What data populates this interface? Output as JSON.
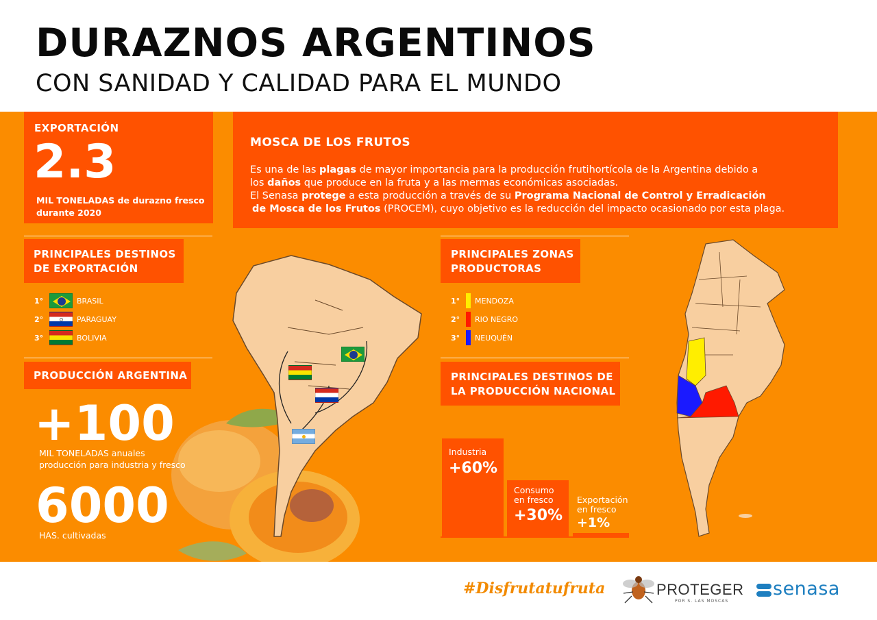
{
  "header": {
    "title": "DURAZNOS ARGENTINOS",
    "subtitle": "CON SANIDAD Y CALIDAD PARA EL MUNDO"
  },
  "export": {
    "heading": "EXPORTACIÓN",
    "value": "2.3",
    "unit_line1": "MIL TONELADAS de durazno fresco",
    "unit_line2": "durante 2020"
  },
  "mosca": {
    "heading": "MOSCA DE LOS FRUTOS",
    "p1a": "Es una de las ",
    "p1b": "plagas",
    "p1c": " de mayor importancia para la producción frutihortícola de la Argentina debido a",
    "p2a": "los ",
    "p2b": "daños",
    "p2c": " que produce en la fruta y a las mermas económicas asociadas.",
    "p3a": "El Senasa ",
    "p3b": "protege",
    "p3c": " a esta producción a través de su ",
    "p3d": "Programa Nacional de Control y Erradicación",
    "p4a": "de Mosca de los Frutos",
    "p4b": " (PROCEM), cuyo objetivo es la reducción del impacto ocasionado por esta plaga."
  },
  "destinos_export": {
    "heading_line1": "PRINCIPALES DESTINOS",
    "heading_line2": "DE EXPORTACIÓN",
    "items": [
      {
        "rank": "1°",
        "country": "BRASIL"
      },
      {
        "rank": "2°",
        "country": "PARAGUAY"
      },
      {
        "rank": "3°",
        "country": "BOLIVIA"
      }
    ]
  },
  "produccion": {
    "heading": "PRODUCCIÓN ARGENTINA",
    "value1": "+100",
    "value1_line1": "MIL TONELADAS anuales",
    "value1_line2": "producción para industria y fresco",
    "value2": "6000",
    "value2_line1": "HAS. cultivadas"
  },
  "zonas": {
    "heading_line1": "PRINCIPALES ZONAS",
    "heading_line2": "PRODUCTORAS",
    "items": [
      {
        "rank": "1°",
        "name": "MENDOZA",
        "color": "#ffee00"
      },
      {
        "rank": "2°",
        "name": "RIO NEGRO",
        "color": "#ff1a00"
      },
      {
        "rank": "3°",
        "name": "NEUQUÉN",
        "color": "#1a1aff"
      }
    ]
  },
  "destinos_nacional": {
    "heading_line1": "PRINCIPALES DESTINOS DE",
    "heading_line2": "LA PRODUCCIÓN NACIONAL",
    "bars": [
      {
        "label_line1": "Industria",
        "label_line2": "",
        "pct": "+60%",
        "value": 60
      },
      {
        "label_line1": "Consumo",
        "label_line2": "en fresco",
        "pct": "+30%",
        "value": 30
      },
      {
        "label_line1": "Exportación",
        "label_line2": "en fresco",
        "pct": "+1%",
        "value": 1
      }
    ]
  },
  "footer": {
    "hashtag": "#Disfrutatufruta",
    "proteger": "PROTEGER",
    "proteger_sub": "POR S. LAS MOSCAS",
    "senasa": "senasa"
  },
  "colors": {
    "band": "#fb8c00",
    "box": "#ff5200",
    "map_land": "#f8cfa0",
    "accent_blue": "#1e7fc0"
  }
}
